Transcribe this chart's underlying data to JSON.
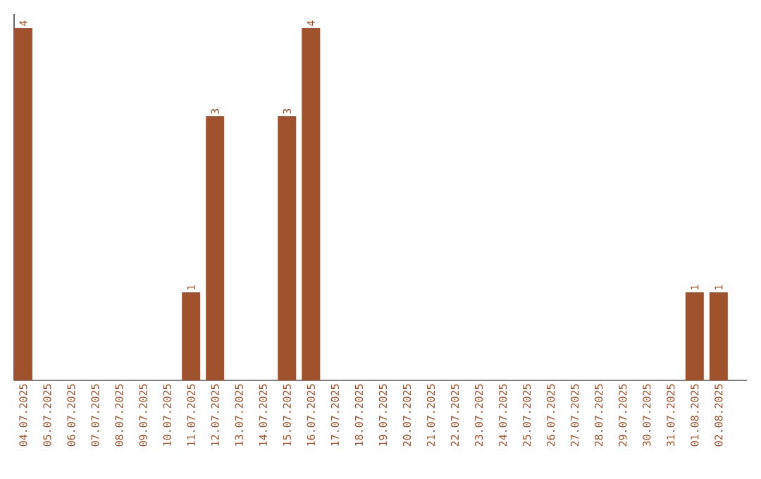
{
  "chart_data": {
    "type": "bar",
    "color": "#a0522d",
    "categories": [
      "04.07.2025",
      "05.07.2025",
      "06.07.2025",
      "07.07.2025",
      "08.07.2025",
      "09.07.2025",
      "10.07.2025",
      "11.07.2025",
      "12.07.2025",
      "13.07.2025",
      "14.07.2025",
      "15.07.2025",
      "16.07.2025",
      "17.07.2025",
      "18.07.2025",
      "19.07.2025",
      "20.07.2025",
      "21.07.2025",
      "22.07.2025",
      "23.07.2025",
      "24.07.2025",
      "25.07.2025",
      "26.07.2025",
      "27.07.2025",
      "28.07.2025",
      "29.07.2025",
      "30.07.2025",
      "31.07.2025",
      "01.08.2025",
      "02.08.2025"
    ],
    "values": [
      4,
      0,
      0,
      0,
      0,
      0,
      0,
      1,
      3,
      0,
      0,
      3,
      4,
      0,
      0,
      0,
      0,
      0,
      0,
      0,
      0,
      0,
      0,
      0,
      0,
      0,
      0,
      0,
      1,
      1
    ],
    "value_labels": [
      "4",
      null,
      null,
      null,
      null,
      null,
      null,
      "1",
      "3",
      null,
      null,
      "3",
      "4",
      null,
      null,
      null,
      null,
      null,
      null,
      null,
      null,
      null,
      null,
      null,
      null,
      null,
      null,
      null,
      "1",
      "1"
    ]
  }
}
